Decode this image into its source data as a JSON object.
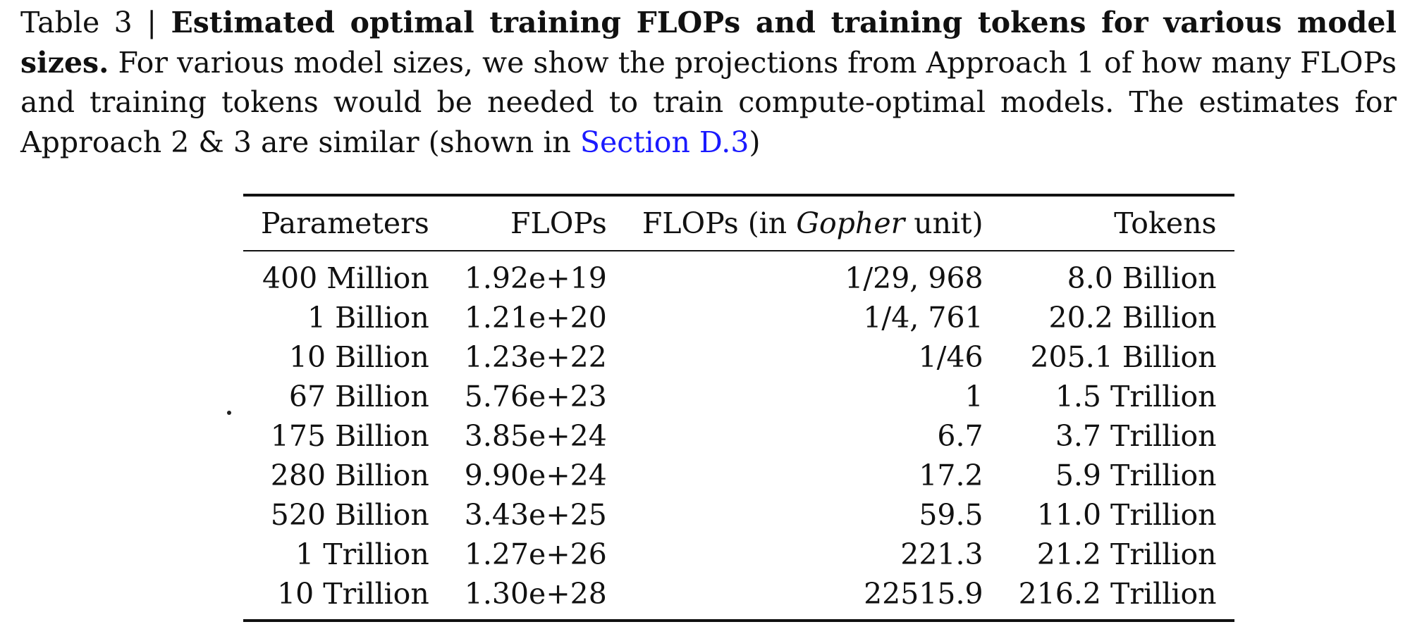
{
  "caption": {
    "label": "Table 3 | ",
    "title": "Estimated optimal training FLOPs and training tokens for various model sizes.",
    "body": " For various model sizes, we show the projections from Approach 1 of how many FLOPs and training tokens would be needed to train compute-optimal models. The estimates for Approach 2 & 3 are similar (shown in ",
    "link": "Section D.3",
    "tail": ")"
  },
  "table": {
    "headers": {
      "parameters": "Parameters",
      "flops": "FLOPs",
      "gopher_prefix": "FLOPs (in ",
      "gopher_em": "Gopher",
      "gopher_suffix": " unit)",
      "tokens": "Tokens"
    },
    "rows": [
      {
        "parameters": "400 Million",
        "flops": "1.92e+19",
        "gopher": "1/29, 968",
        "tokens": "8.0 Billion"
      },
      {
        "parameters": "1 Billion",
        "flops": "1.21e+20",
        "gopher": "1/4, 761",
        "tokens": "20.2 Billion"
      },
      {
        "parameters": "10 Billion",
        "flops": "1.23e+22",
        "gopher": "1/46",
        "tokens": "205.1 Billion"
      },
      {
        "parameters": "67 Billion",
        "flops": "5.76e+23",
        "gopher": "1",
        "tokens": "1.5 Trillion"
      },
      {
        "parameters": "175 Billion",
        "flops": "3.85e+24",
        "gopher": "6.7",
        "tokens": "3.7 Trillion"
      },
      {
        "parameters": "280 Billion",
        "flops": "9.90e+24",
        "gopher": "17.2",
        "tokens": "5.9 Trillion"
      },
      {
        "parameters": "520 Billion",
        "flops": "3.43e+25",
        "gopher": "59.5",
        "tokens": "11.0 Trillion"
      },
      {
        "parameters": "1 Trillion",
        "flops": "1.27e+26",
        "gopher": "221.3",
        "tokens": "21.2 Trillion"
      },
      {
        "parameters": "10 Trillion",
        "flops": "1.30e+28",
        "gopher": "22515.9",
        "tokens": "216.2 Trillion"
      }
    ]
  }
}
